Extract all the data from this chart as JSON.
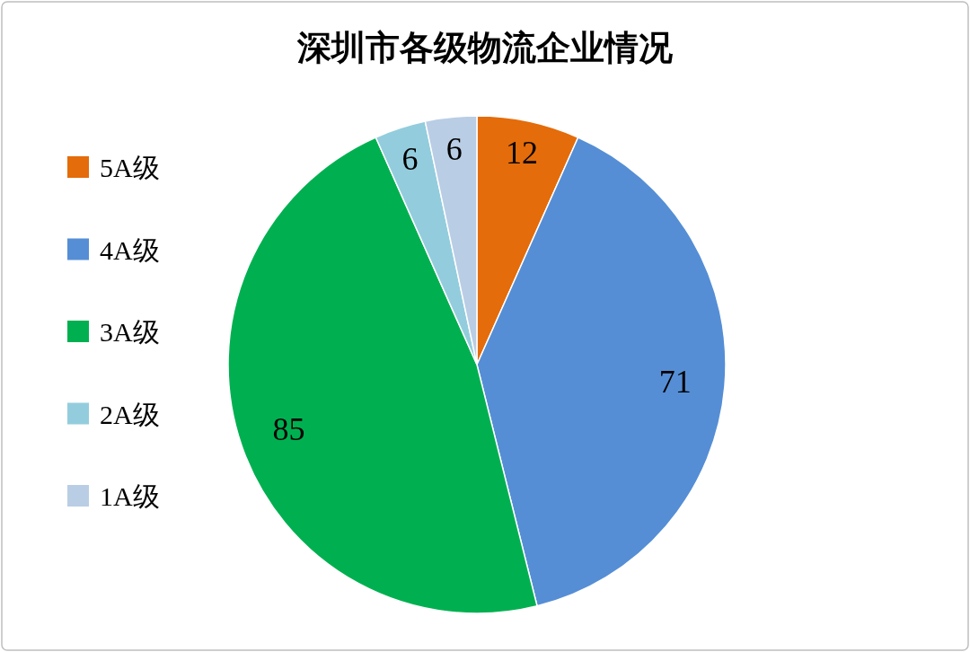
{
  "chart_data": {
    "type": "pie",
    "title": "深圳市各级物流企业情况",
    "categories": [
      "5A级",
      "4A级",
      "3A级",
      "2A级",
      "1A级"
    ],
    "values": [
      12,
      71,
      85,
      6,
      6
    ],
    "colors": [
      "#e46c0a",
      "#558ed5",
      "#00b050",
      "#93cddd",
      "#b9cde5"
    ],
    "data_labels": true,
    "legend": "left"
  }
}
